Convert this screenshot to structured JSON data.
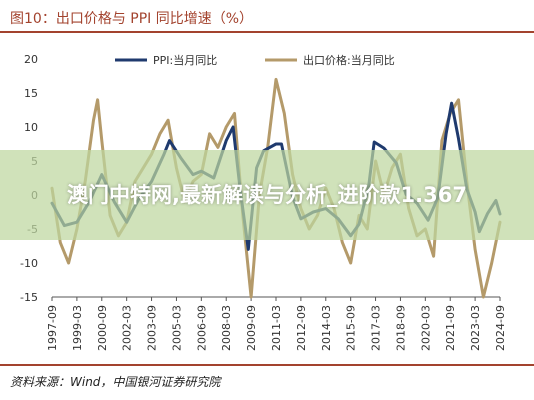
{
  "header": {
    "title": "图10：出口价格与 PPI 同比增速（%）"
  },
  "footer": {
    "source": "资料来源：Wind，中国银河证券研究院"
  },
  "overlay": {
    "text": "澳门中特网,最新解读与分析_进阶款1.367"
  },
  "colors": {
    "ppi": "#1f3a6e",
    "export": "#b49a6a",
    "accent": "#a3432e"
  },
  "chart_data": {
    "type": "line",
    "title": "图10：出口价格与 PPI 同比增速（%）",
    "xlabel": "",
    "ylabel": "",
    "ylim": [
      -15,
      20
    ],
    "xlim": [
      "1997-09",
      "2024-09"
    ],
    "yticks": [
      20,
      15,
      10,
      5,
      0,
      -5,
      -10,
      -15
    ],
    "xticks": [
      "1997-09",
      "1999-03",
      "2000-09",
      "2002-03",
      "2003-09",
      "2005-03",
      "2006-09",
      "2008-03",
      "2009-09",
      "2011-03",
      "2012-09",
      "2014-03",
      "2015-09",
      "2017-03",
      "2018-09",
      "2020-03",
      "2021-09",
      "2023-03",
      "2024-09"
    ],
    "grid": false,
    "legend": "top",
    "series": [
      {
        "name": "PPI:当月同比",
        "color": "#1f3a6e",
        "x": [
          "1997-09",
          "1998-06",
          "1999-03",
          "1999-12",
          "2000-09",
          "2001-06",
          "2002-03",
          "2002-12",
          "2003-09",
          "2004-06",
          "2004-10",
          "2005-06",
          "2006-03",
          "2006-09",
          "2007-06",
          "2008-03",
          "2008-08",
          "2009-01",
          "2009-07",
          "2010-01",
          "2010-06",
          "2011-03",
          "2011-07",
          "2012-03",
          "2012-09",
          "2013-06",
          "2014-03",
          "2014-12",
          "2015-09",
          "2016-03",
          "2016-10",
          "2017-02",
          "2017-09",
          "2018-06",
          "2019-01",
          "2019-09",
          "2020-05",
          "2020-12",
          "2021-06",
          "2021-10",
          "2022-03",
          "2022-09",
          "2023-03",
          "2023-06",
          "2023-12",
          "2024-06",
          "2024-09"
        ],
        "y": [
          -1.2,
          -4.5,
          -4.0,
          -1.0,
          3.0,
          -1.0,
          -4.0,
          -0.5,
          2.0,
          6.0,
          8.0,
          5.5,
          3.0,
          3.5,
          2.5,
          8.0,
          10.0,
          1.0,
          -8.0,
          4.0,
          6.5,
          7.5,
          7.5,
          -0.3,
          -3.5,
          -2.5,
          -2.0,
          -3.5,
          -6.0,
          -4.3,
          1.2,
          7.8,
          6.9,
          4.7,
          0.1,
          -1.2,
          -3.7,
          -0.4,
          9.0,
          13.5,
          8.3,
          0.9,
          -2.5,
          -5.4,
          -2.7,
          -0.8,
          -2.8
        ]
      },
      {
        "name": "出口价格:当月同比",
        "color": "#b49a6a",
        "x": [
          "1997-09",
          "1998-03",
          "1998-09",
          "1999-03",
          "1999-09",
          "2000-03",
          "2000-06",
          "2000-09",
          "2001-03",
          "2001-09",
          "2002-03",
          "2002-09",
          "2003-03",
          "2003-09",
          "2004-03",
          "2004-09",
          "2005-03",
          "2005-09",
          "2006-03",
          "2006-09",
          "2007-03",
          "2007-09",
          "2008-03",
          "2008-09",
          "2009-03",
          "2009-09",
          "2010-03",
          "2010-09",
          "2011-03",
          "2011-09",
          "2012-03",
          "2012-09",
          "2013-03",
          "2013-09",
          "2014-03",
          "2014-09",
          "2015-03",
          "2015-09",
          "2016-03",
          "2016-09",
          "2017-03",
          "2017-09",
          "2018-03",
          "2018-09",
          "2019-03",
          "2019-09",
          "2020-03",
          "2020-09",
          "2021-03",
          "2021-09",
          "2022-03",
          "2022-09",
          "2023-03",
          "2023-09",
          "2024-03",
          "2024-09"
        ],
        "y": [
          1.0,
          -7.0,
          -10.0,
          -5.0,
          2.0,
          11.0,
          14.0,
          8.0,
          -3.0,
          -6.0,
          -4.0,
          2.0,
          4.0,
          6.0,
          9.0,
          11.0,
          4.0,
          -1.0,
          2.0,
          3.0,
          9.0,
          7.0,
          10.0,
          12.0,
          -3.0,
          -15.0,
          0.0,
          7.0,
          17.0,
          12.0,
          3.0,
          -2.0,
          -5.0,
          -3.0,
          1.0,
          -2.0,
          -7.0,
          -10.0,
          -3.0,
          -5.0,
          5.0,
          0.0,
          4.0,
          6.0,
          -2.0,
          -6.0,
          -5.0,
          -9.0,
          8.0,
          12.0,
          14.0,
          2.0,
          -8.0,
          -15.0,
          -10.0,
          -4.0
        ]
      }
    ]
  }
}
